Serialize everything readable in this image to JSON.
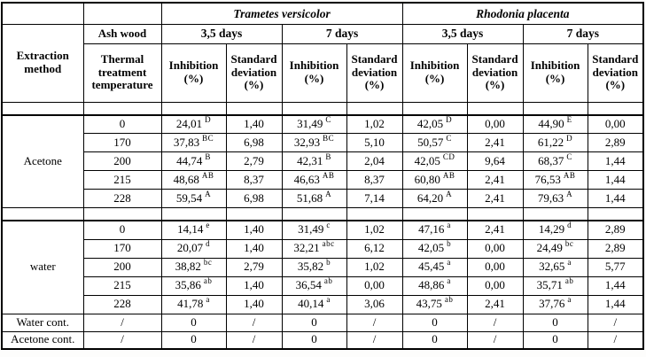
{
  "header": {
    "species": [
      "Trametes versicolor",
      "Rhodonia placenta"
    ],
    "days": [
      "3,5 days",
      "7 days",
      "3,5 days",
      "7 days"
    ],
    "extraction_method": "Extraction method",
    "ash_wood": "Ash wood",
    "thermal": "Thermal treatment temperature",
    "inhibition": "Inhibition (%)",
    "std_dev": "Standard deviation (%)"
  },
  "sections": [
    {
      "method": "Acetone",
      "rows": [
        {
          "temp": "0",
          "values": [
            {
              "v": "24,01",
              "sup": "D"
            },
            {
              "v": "1,40",
              "sup": ""
            },
            {
              "v": "31,49",
              "sup": "C"
            },
            {
              "v": "1,02",
              "sup": ""
            },
            {
              "v": "42,05",
              "sup": "D"
            },
            {
              "v": "0,00",
              "sup": ""
            },
            {
              "v": "44,90",
              "sup": "E"
            },
            {
              "v": "0,00",
              "sup": ""
            }
          ]
        },
        {
          "temp": "170",
          "values": [
            {
              "v": "37,83",
              "sup": "BC"
            },
            {
              "v": "6,98",
              "sup": ""
            },
            {
              "v": "32,93",
              "sup": "BC"
            },
            {
              "v": "5,10",
              "sup": ""
            },
            {
              "v": "50,57",
              "sup": "C"
            },
            {
              "v": "2,41",
              "sup": ""
            },
            {
              "v": "61,22",
              "sup": "D"
            },
            {
              "v": "2,89",
              "sup": ""
            }
          ]
        },
        {
          "temp": "200",
          "values": [
            {
              "v": "44,74",
              "sup": "B"
            },
            {
              "v": "2,79",
              "sup": ""
            },
            {
              "v": "42,31",
              "sup": "B"
            },
            {
              "v": "2,04",
              "sup": ""
            },
            {
              "v": "42,05",
              "sup": "CD"
            },
            {
              "v": "9,64",
              "sup": ""
            },
            {
              "v": "68,37",
              "sup": "C"
            },
            {
              "v": "1,44",
              "sup": ""
            }
          ]
        },
        {
          "temp": "215",
          "values": [
            {
              "v": "48,68",
              "sup": "AB"
            },
            {
              "v": "8,37",
              "sup": ""
            },
            {
              "v": "46,63",
              "sup": "AB"
            },
            {
              "v": "8,37",
              "sup": ""
            },
            {
              "v": "60,80",
              "sup": "AB"
            },
            {
              "v": "2,41",
              "sup": ""
            },
            {
              "v": "76,53",
              "sup": "AB"
            },
            {
              "v": "1,44",
              "sup": ""
            }
          ]
        },
        {
          "temp": "228",
          "values": [
            {
              "v": "59,54",
              "sup": "A"
            },
            {
              "v": "6,98",
              "sup": ""
            },
            {
              "v": "51,68",
              "sup": "A"
            },
            {
              "v": "7,14",
              "sup": ""
            },
            {
              "v": "64,20",
              "sup": "A"
            },
            {
              "v": "2,41",
              "sup": ""
            },
            {
              "v": "79,63",
              "sup": "A"
            },
            {
              "v": "1,44",
              "sup": ""
            }
          ]
        }
      ]
    },
    {
      "method": "water",
      "rows": [
        {
          "temp": "0",
          "values": [
            {
              "v": "14,14",
              "sup": "e"
            },
            {
              "v": "1,40",
              "sup": ""
            },
            {
              "v": "31,49",
              "sup": "c"
            },
            {
              "v": "1,02",
              "sup": ""
            },
            {
              "v": "47,16",
              "sup": "a"
            },
            {
              "v": "2,41",
              "sup": ""
            },
            {
              "v": "14,29",
              "sup": "d"
            },
            {
              "v": "2,89",
              "sup": ""
            }
          ]
        },
        {
          "temp": "170",
          "values": [
            {
              "v": "20,07",
              "sup": "d"
            },
            {
              "v": "1,40",
              "sup": ""
            },
            {
              "v": "32,21",
              "sup": "abc"
            },
            {
              "v": "6,12",
              "sup": ""
            },
            {
              "v": "42,05",
              "sup": "b"
            },
            {
              "v": "0,00",
              "sup": ""
            },
            {
              "v": "24,49",
              "sup": "bc"
            },
            {
              "v": "2,89",
              "sup": ""
            }
          ]
        },
        {
          "temp": "200",
          "values": [
            {
              "v": "38,82",
              "sup": "bc"
            },
            {
              "v": "2,79",
              "sup": ""
            },
            {
              "v": "35,82",
              "sup": "b"
            },
            {
              "v": "1,02",
              "sup": ""
            },
            {
              "v": "45,45",
              "sup": "a"
            },
            {
              "v": "0,00",
              "sup": ""
            },
            {
              "v": "32,65",
              "sup": "a"
            },
            {
              "v": "5,77",
              "sup": ""
            }
          ]
        },
        {
          "temp": "215",
          "values": [
            {
              "v": "35,86",
              "sup": "ab"
            },
            {
              "v": "1,40",
              "sup": ""
            },
            {
              "v": "36,54",
              "sup": "ab"
            },
            {
              "v": "0,00",
              "sup": ""
            },
            {
              "v": "48,86",
              "sup": "a"
            },
            {
              "v": "0,00",
              "sup": ""
            },
            {
              "v": "35,71",
              "sup": "ab"
            },
            {
              "v": "1,44",
              "sup": ""
            }
          ]
        },
        {
          "temp": "228",
          "values": [
            {
              "v": "41,78",
              "sup": "a"
            },
            {
              "v": "1,40",
              "sup": ""
            },
            {
              "v": "40,14",
              "sup": "a"
            },
            {
              "v": "3,06",
              "sup": ""
            },
            {
              "v": "43,75",
              "sup": "ab"
            },
            {
              "v": "2,41",
              "sup": ""
            },
            {
              "v": "37,76",
              "sup": "a"
            },
            {
              "v": "1,44",
              "sup": ""
            }
          ]
        }
      ]
    }
  ],
  "footer_rows": [
    {
      "label": "Water cont.",
      "values": [
        "/",
        "0",
        "/",
        "0",
        "/",
        "0",
        "/",
        "0",
        "/"
      ]
    },
    {
      "label": "Acetone cont.",
      "values": [
        "/",
        "0",
        "/",
        "0",
        "/",
        "0",
        "/",
        "0",
        "/"
      ]
    }
  ],
  "colors": {
    "border": "#000000",
    "text": "#000000",
    "background": "#ffffff"
  }
}
